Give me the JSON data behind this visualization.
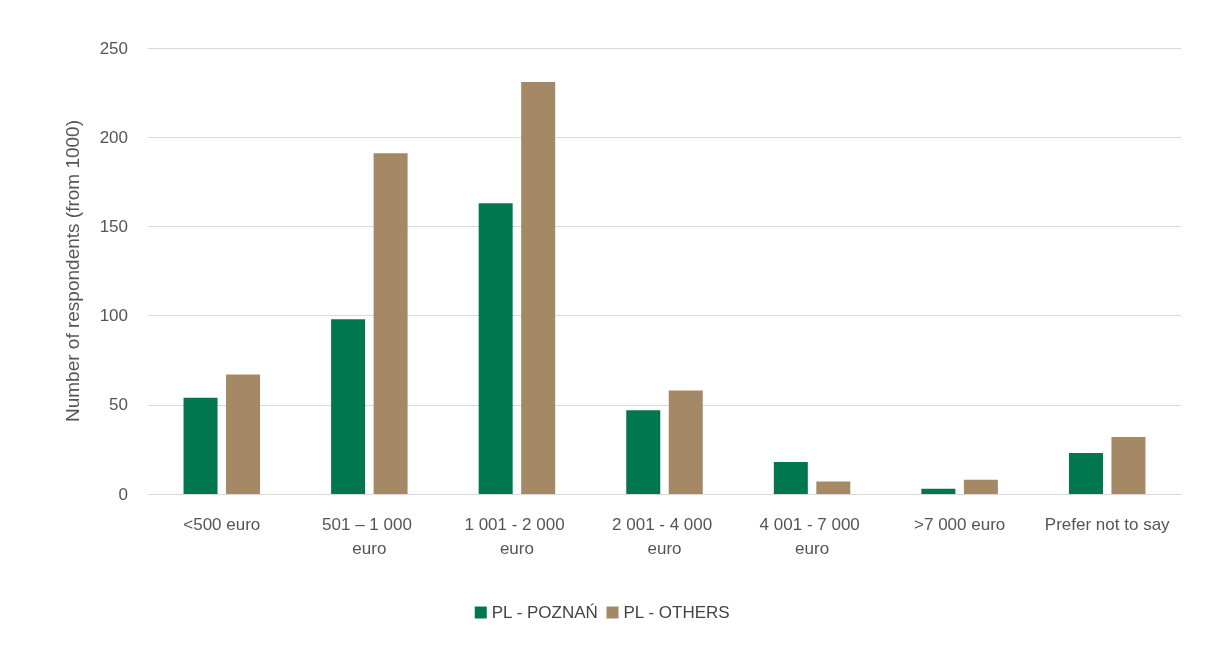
{
  "chart_data": {
    "type": "bar",
    "ylabel": "Number of respondents (from 1000)",
    "categories": [
      "<500 euro",
      "501 – 1 000 euro",
      "1 001 - 2 000 euro",
      "2 001 - 4 000 euro",
      "4 001 - 7 000 euro",
      ">7 000 euro",
      "Prefer not to say"
    ],
    "series": [
      {
        "name": "PL - POZNAŃ",
        "color": "#00774f",
        "values": [
          54,
          98,
          163,
          47,
          18,
          3,
          23
        ]
      },
      {
        "name": "PL - OTHERS",
        "color": "#a58866",
        "values": [
          67,
          191,
          231,
          58,
          7,
          8,
          32
        ]
      }
    ],
    "ylim": [
      0,
      250
    ],
    "yticks": [
      0,
      50,
      100,
      150,
      200,
      250
    ],
    "grid": "y",
    "legend": "bottom"
  }
}
